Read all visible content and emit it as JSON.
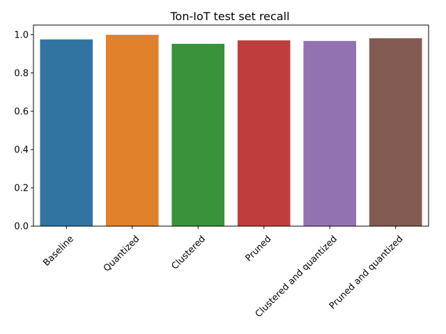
{
  "chart_data": {
    "type": "bar",
    "title": "Ton-IoT test set recall",
    "xlabel": "",
    "ylabel": "",
    "categories": [
      "Baseline",
      "Quantized",
      "Clustered",
      "Pruned",
      "Clustered and quantized",
      "Pruned and quantized"
    ],
    "values": [
      0.975,
      0.999,
      0.952,
      0.97,
      0.967,
      0.981
    ],
    "colors": [
      "#3274a1",
      "#e1812c",
      "#3a923a",
      "#c03d3e",
      "#9372b2",
      "#845b53"
    ],
    "ylim": [
      0,
      1.05
    ],
    "yticks": [
      0.0,
      0.2,
      0.4,
      0.6,
      0.8,
      1.0
    ],
    "ytick_labels": [
      "0.0",
      "0.2",
      "0.4",
      "0.6",
      "0.8",
      "1.0"
    ],
    "grid": false,
    "legend": "none"
  }
}
